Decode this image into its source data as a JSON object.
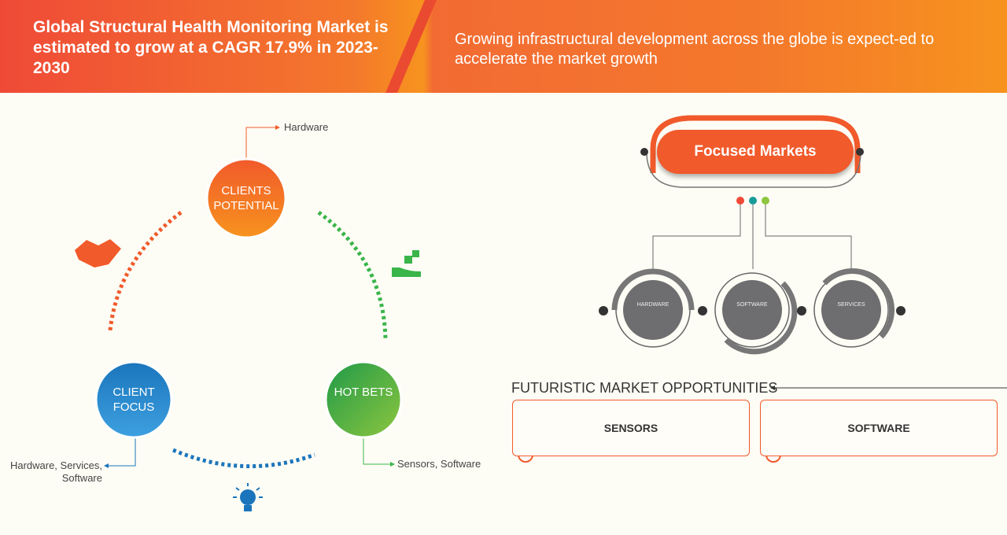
{
  "header": {
    "title": "Global Structural Health Monitoring Market is estimated to grow at a CAGR 17.9% in 2023-2030",
    "subtitle": "Growing infrastructural development across the globe is expect-ed to accelerate the market growth"
  },
  "cycle": {
    "clients_potential": {
      "label": "CLIENTS POTENTIAL",
      "note": "Hardware",
      "color": "#f15a2b"
    },
    "client_focus": {
      "label": "CLIENT FOCUS",
      "note": "Hardware, Services, Software",
      "color": "#1b75bc"
    },
    "hot_bets": {
      "label": "HOT BETS",
      "note": "Sensors, Software",
      "color": "#39b54a"
    }
  },
  "focused": {
    "title": "Focused Markets",
    "items": [
      "HARDWARE",
      "SOFTWARE",
      "SERVICES"
    ]
  },
  "futuristic": {
    "title": "FUTURISTIC MARKET OPPORTUNITIES",
    "items": [
      "SENSORS",
      "SOFTWARE"
    ]
  }
}
